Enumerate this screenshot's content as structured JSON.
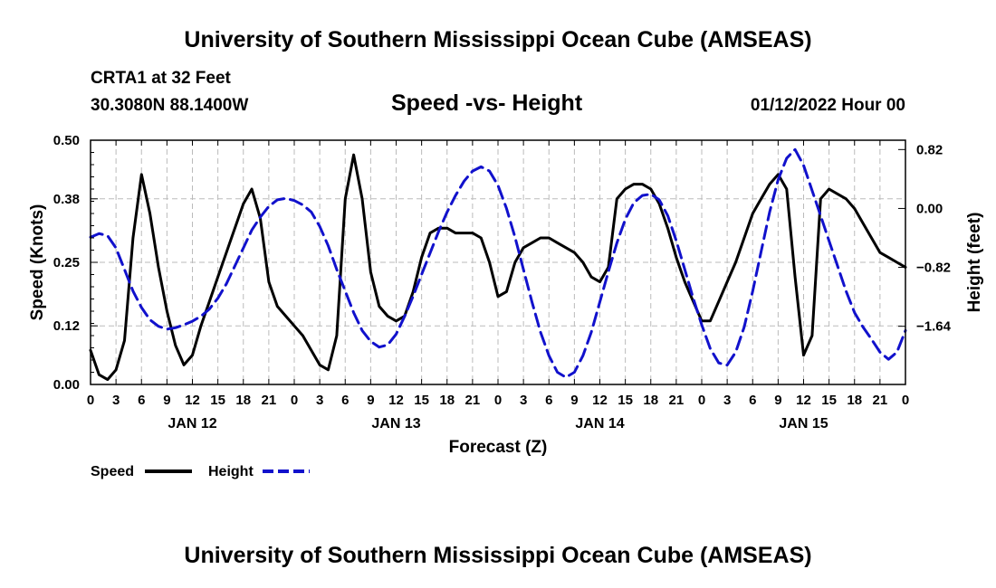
{
  "header": {
    "title": "University of Southern Mississippi Ocean Cube (AMSEAS)",
    "station": "CRTA1 at 32 Feet",
    "coords": "30.3080N  88.1400W",
    "datetime": "01/12/2022 Hour 00"
  },
  "footer": {
    "title": "University of Southern Mississippi Ocean Cube (AMSEAS)"
  },
  "colors": {
    "speed": "#000000",
    "height": "#1111cc",
    "grid": "#bbbbbb"
  },
  "chart_data": {
    "type": "line",
    "title": "Speed -vs- Height",
    "xlabel": "Forecast (Z)",
    "ylabel": "Speed (Knots)",
    "ylabel_right": "Height (feet)",
    "xlim": [
      0,
      96
    ],
    "ylim": [
      0,
      0.5
    ],
    "ylim_right": [
      -2.45,
      0.95
    ],
    "x_ticks": [
      0,
      3,
      6,
      9,
      12,
      15,
      18,
      21,
      24,
      27,
      30,
      33,
      36,
      39,
      42,
      45,
      48,
      51,
      54,
      57,
      60,
      63,
      66,
      69,
      72,
      75,
      78,
      81,
      84,
      87,
      90,
      93,
      96
    ],
    "x_tick_labels": [
      "0",
      "3",
      "6",
      "9",
      "12",
      "15",
      "18",
      "21",
      "0",
      "3",
      "6",
      "9",
      "12",
      "15",
      "18",
      "21",
      "0",
      "3",
      "6",
      "9",
      "12",
      "15",
      "18",
      "21",
      "0",
      "3",
      "6",
      "9",
      "12",
      "15",
      "18",
      "21",
      "0"
    ],
    "day_labels": [
      {
        "x": 12,
        "label": "JAN 12"
      },
      {
        "x": 36,
        "label": "JAN 13"
      },
      {
        "x": 60,
        "label": "JAN 14"
      },
      {
        "x": 84,
        "label": "JAN 15"
      }
    ],
    "y_ticks": [
      0.0,
      0.12,
      0.25,
      0.38,
      0.5
    ],
    "y_tick_labels": [
      "0.00",
      "0.12",
      "0.25",
      "0.38",
      "0.50"
    ],
    "y_ticks_right": [
      -1.64,
      -0.82,
      0.0,
      0.82
    ],
    "y_tick_labels_right": [
      "−1.64",
      "−0.82",
      "0.00",
      "0.82"
    ],
    "legend": [
      {
        "name": "Speed",
        "style": "solid"
      },
      {
        "name": "Height",
        "style": "dashed"
      }
    ],
    "series": [
      {
        "name": "Speed",
        "axis": "left",
        "x": [
          0,
          1,
          2,
          3,
          4,
          5,
          6,
          7,
          8,
          9,
          10,
          11,
          12,
          13,
          14,
          15,
          16,
          17,
          18,
          19,
          20,
          21,
          22,
          23,
          24,
          25,
          26,
          27,
          28,
          29,
          30,
          31,
          32,
          33,
          34,
          35,
          36,
          37,
          38,
          39,
          40,
          41,
          42,
          43,
          44,
          45,
          46,
          47,
          48,
          49,
          50,
          51,
          52,
          53,
          54,
          55,
          56,
          57,
          58,
          59,
          60,
          61,
          62,
          63,
          64,
          65,
          66,
          67,
          68,
          69,
          70,
          71,
          72,
          73,
          74,
          75,
          76,
          77,
          78,
          79,
          80,
          81,
          82,
          83,
          84,
          85,
          86,
          87,
          88,
          89,
          90,
          91,
          92,
          93,
          94,
          95,
          96
        ],
        "values": [
          0.07,
          0.02,
          0.01,
          0.03,
          0.09,
          0.3,
          0.43,
          0.35,
          0.24,
          0.15,
          0.08,
          0.04,
          0.06,
          0.12,
          0.17,
          0.22,
          0.27,
          0.32,
          0.37,
          0.4,
          0.34,
          0.21,
          0.16,
          0.14,
          0.12,
          0.1,
          0.07,
          0.04,
          0.03,
          0.1,
          0.38,
          0.47,
          0.38,
          0.23,
          0.16,
          0.14,
          0.13,
          0.14,
          0.19,
          0.26,
          0.31,
          0.32,
          0.32,
          0.31,
          0.31,
          0.31,
          0.3,
          0.25,
          0.18,
          0.19,
          0.25,
          0.28,
          0.29,
          0.3,
          0.3,
          0.29,
          0.28,
          0.27,
          0.25,
          0.22,
          0.21,
          0.24,
          0.38,
          0.4,
          0.41,
          0.41,
          0.4,
          0.37,
          0.32,
          0.26,
          0.21,
          0.17,
          0.13,
          0.13,
          0.17,
          0.21,
          0.25,
          0.3,
          0.35,
          0.38,
          0.41,
          0.43,
          0.4,
          0.22,
          0.06,
          0.1,
          0.38,
          0.4,
          0.39,
          0.38,
          0.36,
          0.33,
          0.3,
          0.27,
          0.26,
          0.25,
          0.24
        ]
      },
      {
        "name": "Height",
        "axis": "right",
        "x": [
          0,
          1,
          2,
          3,
          4,
          5,
          6,
          7,
          8,
          9,
          10,
          11,
          12,
          13,
          14,
          15,
          16,
          17,
          18,
          19,
          20,
          21,
          22,
          23,
          24,
          25,
          26,
          27,
          28,
          29,
          30,
          31,
          32,
          33,
          34,
          35,
          36,
          37,
          38,
          39,
          40,
          41,
          42,
          43,
          44,
          45,
          46,
          47,
          48,
          49,
          50,
          51,
          52,
          53,
          54,
          55,
          56,
          57,
          58,
          59,
          60,
          61,
          62,
          63,
          64,
          65,
          66,
          67,
          68,
          69,
          70,
          71,
          72,
          73,
          74,
          75,
          76,
          77,
          78,
          79,
          80,
          81,
          82,
          83,
          84,
          85,
          86,
          87,
          88,
          89,
          90,
          91,
          92,
          93,
          94,
          95,
          96
        ],
        "values": [
          -0.4,
          -0.35,
          -0.38,
          -0.55,
          -0.85,
          -1.15,
          -1.38,
          -1.55,
          -1.64,
          -1.68,
          -1.66,
          -1.62,
          -1.57,
          -1.5,
          -1.4,
          -1.25,
          -1.05,
          -0.8,
          -0.55,
          -0.3,
          -0.12,
          0.03,
          0.12,
          0.14,
          0.11,
          0.05,
          -0.05,
          -0.25,
          -0.52,
          -0.85,
          -1.15,
          -1.45,
          -1.7,
          -1.85,
          -1.93,
          -1.9,
          -1.75,
          -1.5,
          -1.22,
          -0.92,
          -0.62,
          -0.32,
          -0.05,
          0.18,
          0.38,
          0.52,
          0.58,
          0.52,
          0.32,
          0.0,
          -0.4,
          -0.85,
          -1.3,
          -1.72,
          -2.05,
          -2.28,
          -2.35,
          -2.28,
          -2.05,
          -1.72,
          -1.3,
          -0.88,
          -0.48,
          -0.15,
          0.08,
          0.18,
          0.2,
          0.12,
          -0.1,
          -0.45,
          -0.85,
          -1.25,
          -1.62,
          -1.95,
          -2.15,
          -2.18,
          -2.0,
          -1.65,
          -1.15,
          -0.6,
          -0.05,
          0.4,
          0.7,
          0.82,
          0.6,
          0.25,
          -0.1,
          -0.45,
          -0.8,
          -1.15,
          -1.45,
          -1.65,
          -1.82,
          -2.0,
          -2.1,
          -2.0,
          -1.7
        ]
      }
    ]
  }
}
